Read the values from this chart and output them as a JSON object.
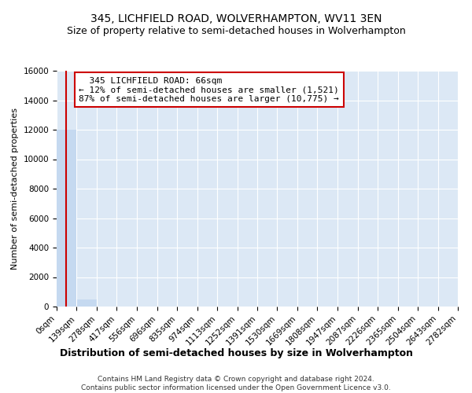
{
  "title": "345, LICHFIELD ROAD, WOLVERHAMPTON, WV11 3EN",
  "subtitle": "Size of property relative to semi-detached houses in Wolverhampton",
  "xlabel_bottom": "Distribution of semi-detached houses by size in Wolverhampton",
  "ylabel": "Number of semi-detached properties",
  "footer_line1": "Contains HM Land Registry data © Crown copyright and database right 2024.",
  "footer_line2": "Contains public sector information licensed under the Open Government Licence v3.0.",
  "bin_edges": [
    0,
    139,
    278,
    417,
    556,
    696,
    835,
    974,
    1113,
    1252,
    1391,
    1530,
    1669,
    1808,
    1947,
    2087,
    2226,
    2365,
    2504,
    2643,
    2782
  ],
  "bar_heights": [
    12000,
    500,
    15,
    5,
    3,
    2,
    1,
    1,
    1,
    0,
    0,
    0,
    0,
    0,
    0,
    0,
    0,
    0,
    0,
    0
  ],
  "bar_color": "#c5d9f0",
  "property_size": 66,
  "property_label": "345 LICHFIELD ROAD: 66sqm",
  "pct_smaller": 12,
  "count_smaller": 1521,
  "pct_larger": 87,
  "count_larger": 10775,
  "annotation_box_color": "#cc0000",
  "vline_color": "#cc0000",
  "ylim": [
    0,
    16000
  ],
  "yticks": [
    0,
    2000,
    4000,
    6000,
    8000,
    10000,
    12000,
    14000,
    16000
  ],
  "background_color": "#dce8f5",
  "grid_color": "#ffffff",
  "title_fontsize": 10,
  "subtitle_fontsize": 9,
  "tick_labelsize": 7.5,
  "annot_fontsize": 8
}
